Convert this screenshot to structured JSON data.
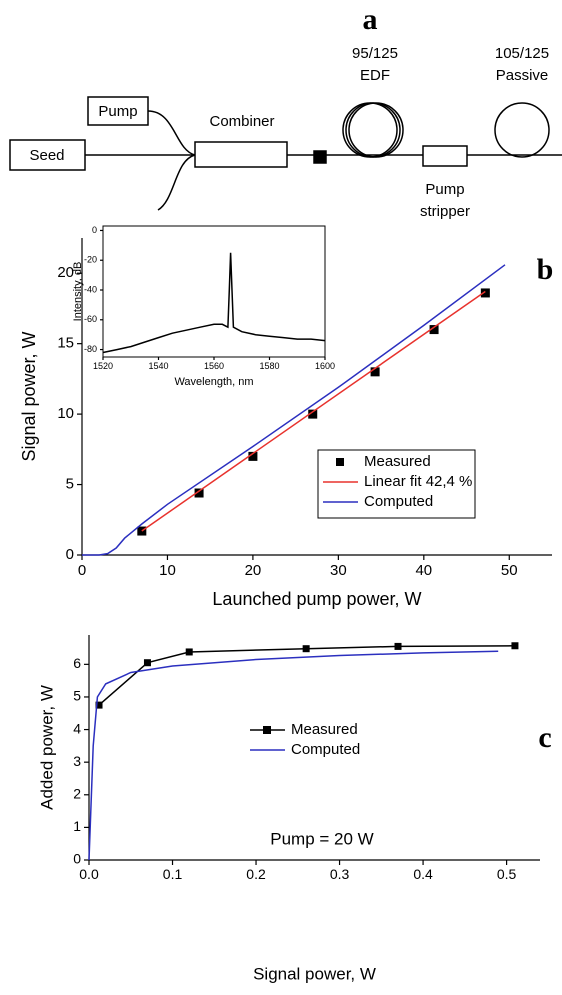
{
  "diagram": {
    "panel_label": "a",
    "pump": "Pump",
    "seed": "Seed",
    "combiner": "Combiner",
    "edf_core": "95/125",
    "edf": "EDF",
    "passive_core": "105/125",
    "passive": "Passive",
    "stripper_1": "Pump",
    "stripper_2": "stripper"
  },
  "chart_data": [
    {
      "type": "line",
      "panel_label": "b",
      "x_label": "Launched pump power, W",
      "y_label": "Signal power, W",
      "xlim": [
        0,
        55
      ],
      "ylim": [
        0,
        22.5
      ],
      "xticks": [
        0,
        10,
        20,
        30,
        40,
        50
      ],
      "yticks": [
        0,
        5,
        10,
        15,
        20
      ],
      "series": [
        {
          "name": "Measured",
          "style": "markers",
          "color": "#000000",
          "x": [
            7,
            13.7,
            20,
            27,
            34.3,
            41.2,
            47.2
          ],
          "values": [
            1.7,
            4.4,
            7,
            10,
            13,
            16,
            18.6
          ]
        },
        {
          "name": "Linear fit 42,4 %",
          "style": "line",
          "color": "#e8322d",
          "x": [
            7,
            47.2
          ],
          "values": [
            1.7,
            18.7
          ]
        },
        {
          "name": "Computed",
          "style": "line",
          "color": "#2b2fbf",
          "x": [
            0,
            2,
            3,
            4,
            5,
            7,
            10,
            20,
            30,
            40,
            49.5
          ],
          "values": [
            0,
            0,
            0.1,
            0.5,
            1.2,
            2.2,
            3.6,
            7.7,
            11.9,
            16.3,
            20.6
          ]
        }
      ]
    },
    {
      "type": "line",
      "x_label": "Wavelength, nm",
      "y_label": "Intensity, dB",
      "xlim": [
        1520,
        1600
      ],
      "ylim": [
        -85,
        3
      ],
      "xticks": [
        1520,
        1540,
        1560,
        1580,
        1600
      ],
      "yticks": [
        0,
        -20,
        -40,
        -60,
        -80
      ],
      "series": [
        {
          "style": "line",
          "color": "#000000",
          "x": [
            1520,
            1525,
            1530,
            1535,
            1540,
            1545,
            1550,
            1555,
            1560,
            1563,
            1565,
            1565.5,
            1566,
            1566.5,
            1567,
            1570,
            1575,
            1580,
            1585,
            1590,
            1595,
            1600
          ],
          "values": [
            -82,
            -80,
            -78,
            -75,
            -72,
            -69,
            -67,
            -65,
            -63,
            -63,
            -65,
            -40,
            -15,
            -40,
            -65,
            -68,
            -70,
            -71,
            -72,
            -73,
            -73,
            -74
          ]
        }
      ]
    },
    {
      "type": "line",
      "panel_label": "c",
      "x_label": "Signal power, W",
      "y_label": "Added power, W",
      "annotation": "Pump = 20 W",
      "xlim": [
        0,
        0.54
      ],
      "ylim": [
        0,
        6.9
      ],
      "xticks": [
        {
          "value": 0,
          "label": "0.0"
        },
        {
          "value": 0.1,
          "label": "0.1"
        },
        {
          "value": 0.2,
          "label": "0.2"
        },
        {
          "value": 0.3,
          "label": "0.3"
        },
        {
          "value": 0.4,
          "label": "0.4"
        },
        {
          "value": 0.5,
          "label": "0.5"
        }
      ],
      "yticks": [
        0,
        1,
        2,
        3,
        4,
        5,
        6
      ],
      "series": [
        {
          "name": "Measured",
          "style": "line+markers",
          "color": "#000000",
          "x": [
            0.012,
            0.07,
            0.12,
            0.26,
            0.37,
            0.51
          ],
          "values": [
            4.75,
            6.05,
            6.38,
            6.48,
            6.55,
            6.57
          ]
        },
        {
          "name": "Computed",
          "style": "line",
          "color": "#2b2fbf",
          "x": [
            0,
            0.005,
            0.01,
            0.02,
            0.05,
            0.1,
            0.2,
            0.3,
            0.4,
            0.49
          ],
          "values": [
            0,
            3.5,
            5.0,
            5.4,
            5.75,
            5.95,
            6.15,
            6.27,
            6.35,
            6.4
          ]
        }
      ]
    }
  ]
}
